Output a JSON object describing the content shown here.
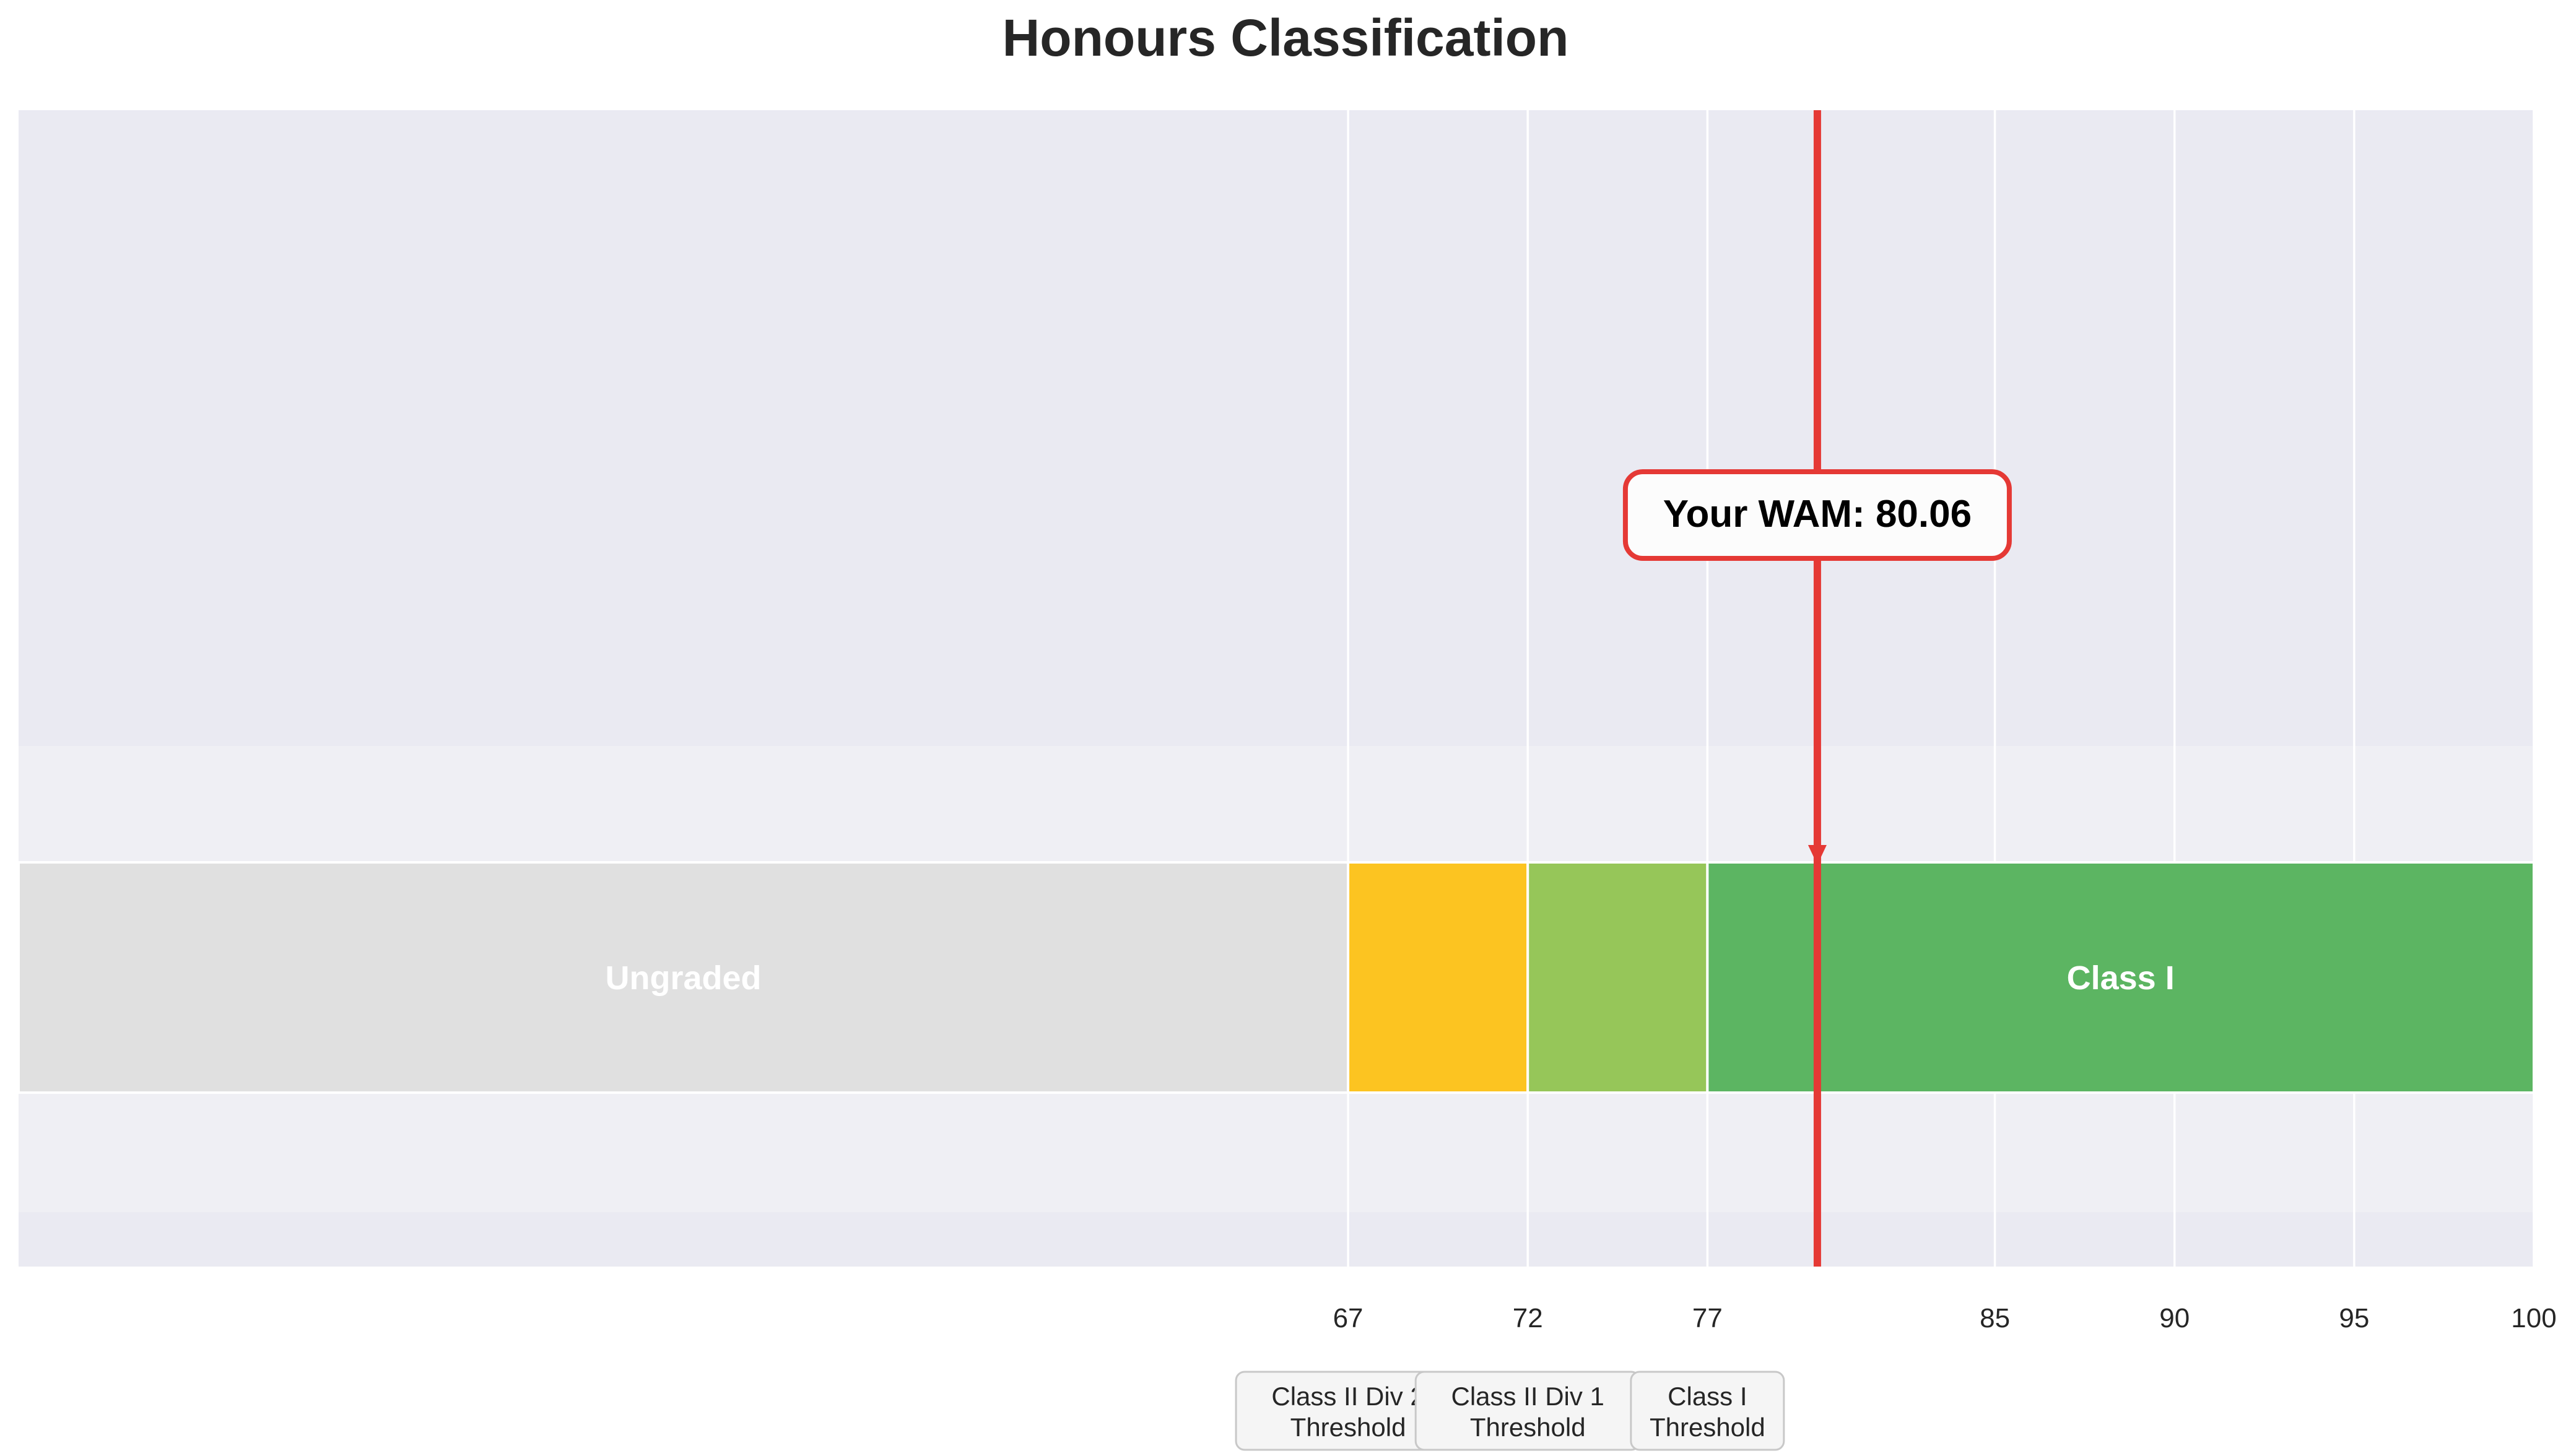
{
  "chart_data": {
    "type": "bar",
    "orientation": "horizontal-scale",
    "title": "Honours Classification",
    "xlabel": "",
    "ylabel": "",
    "xlim": [
      30,
      100
    ],
    "grid": true,
    "ticks": [
      67,
      72,
      77,
      85,
      90,
      95,
      100
    ],
    "tick_labels": [
      "67",
      "72",
      "77",
      "85",
      "90",
      "95",
      "100"
    ],
    "segments": [
      {
        "label": "Ungraded",
        "start": 30,
        "end": 67,
        "color": "#e0e0e0"
      },
      {
        "label": "",
        "start": 67,
        "end": 72,
        "color": "#fcc421"
      },
      {
        "label": "",
        "start": 72,
        "end": 77,
        "color": "#96c659"
      },
      {
        "label": "Class I",
        "start": 77,
        "end": 100,
        "color": "#5cb562"
      }
    ],
    "thresholds": [
      {
        "value": 67,
        "line1": "Class II Div 2",
        "line2": "Threshold"
      },
      {
        "value": 72,
        "line1": "Class II Div 1",
        "line2": "Threshold"
      },
      {
        "value": 77,
        "line1": "Class I",
        "line2": "Threshold"
      }
    ],
    "marker": {
      "value": 80.06,
      "label": "Your WAM: 80.06",
      "color": "#e53935"
    }
  },
  "colors": {
    "plot_background": "#eaeaf2",
    "band_background": "#efeff4",
    "grid": "#ffffff",
    "marker": "#e53935"
  }
}
